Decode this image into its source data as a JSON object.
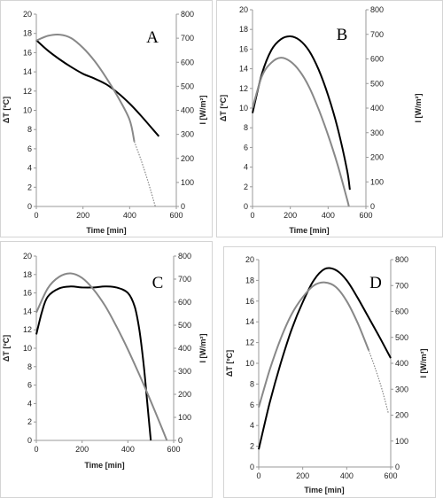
{
  "chart_data": [
    {
      "type": "line",
      "panel_label": "A",
      "xlabel": "Time [min]",
      "ylabel_left": "ΔT [ºC]",
      "ylabel_right": "I [W/m²]",
      "xlim": [
        0,
        600
      ],
      "ylim_left": [
        0,
        20
      ],
      "ylim_right": [
        0,
        800
      ],
      "x_ticks": [
        "0",
        "200",
        "400",
        "600"
      ],
      "y_ticks_left": [
        "0",
        "2",
        "4",
        "6",
        "8",
        "10",
        "12",
        "14",
        "16",
        "18",
        "20"
      ],
      "y_ticks_right": [
        "0",
        "100",
        "200",
        "300",
        "400",
        "500",
        "600",
        "700",
        "800"
      ],
      "series": [
        {
          "axis": "left",
          "color": "#000000",
          "x": [
            0,
            50,
            100,
            150,
            200,
            250,
            300,
            350,
            400,
            450,
            500,
            525
          ],
          "y": [
            17.3,
            16.2,
            15.3,
            14.5,
            13.8,
            13.3,
            12.7,
            11.8,
            10.7,
            9.4,
            8.0,
            7.3
          ]
        },
        {
          "axis": "right",
          "color": "#888888",
          "x": [
            0,
            50,
            100,
            150,
            200,
            250,
            300,
            350,
            400,
            420
          ],
          "y": [
            690,
            710,
            715,
            700,
            660,
            605,
            535,
            455,
            360,
            270
          ]
        },
        {
          "axis": "right",
          "color": "#888888",
          "dashed": true,
          "x": [
            420,
            450,
            480,
            510
          ],
          "y": [
            270,
            190,
            100,
            0
          ]
        }
      ]
    },
    {
      "type": "line",
      "panel_label": "B",
      "xlabel": "Time [min]",
      "ylabel_left": "ΔT [ºC]",
      "ylabel_right": "I [W/m²]",
      "xlim": [
        0,
        600
      ],
      "ylim_left": [
        0,
        20
      ],
      "ylim_right": [
        0,
        800
      ],
      "x_ticks": [
        "0",
        "200",
        "400",
        "600"
      ],
      "y_ticks_left": [
        "0",
        "2",
        "4",
        "6",
        "8",
        "10",
        "12",
        "14",
        "16",
        "18",
        "20"
      ],
      "y_ticks_right": [
        "0",
        "100",
        "200",
        "300",
        "400",
        "500",
        "600",
        "700",
        "800"
      ],
      "series": [
        {
          "axis": "left",
          "color": "#000000",
          "x": [
            0,
            50,
            100,
            150,
            200,
            250,
            300,
            350,
            400,
            450,
            500,
            515
          ],
          "y": [
            9.5,
            13.5,
            15.9,
            17.0,
            17.3,
            16.9,
            15.8,
            13.9,
            11.3,
            8.0,
            3.7,
            1.7
          ]
        },
        {
          "axis": "right",
          "color": "#888888",
          "x": [
            0,
            50,
            100,
            150,
            200,
            250,
            300,
            350,
            400,
            450,
            500,
            510
          ],
          "y": [
            400,
            530,
            585,
            605,
            590,
            550,
            485,
            395,
            290,
            170,
            30,
            0
          ]
        }
      ]
    },
    {
      "type": "line",
      "panel_label": "C",
      "xlabel": "Time [min]",
      "ylabel_left": "ΔT [ºC]",
      "ylabel_right": "I [W/m²]",
      "xlim": [
        0,
        600
      ],
      "ylim_left": [
        0,
        20
      ],
      "ylim_right": [
        0,
        800
      ],
      "x_ticks": [
        "0",
        "200",
        "400",
        "600"
      ],
      "y_ticks_left": [
        "0",
        "2",
        "4",
        "6",
        "8",
        "10",
        "12",
        "14",
        "16",
        "18",
        "20"
      ],
      "y_ticks_right": [
        "0",
        "100",
        "200",
        "300",
        "400",
        "500",
        "600",
        "700",
        "800"
      ],
      "series": [
        {
          "axis": "left",
          "color": "#000000",
          "x": [
            0,
            25,
            50,
            100,
            150,
            200,
            250,
            300,
            350,
            400,
            430,
            450,
            470,
            485,
            500
          ],
          "y": [
            11.5,
            14.0,
            15.6,
            16.5,
            16.7,
            16.6,
            16.6,
            16.7,
            16.6,
            16.0,
            14.5,
            12.0,
            8.0,
            4.0,
            0
          ]
        },
        {
          "axis": "right",
          "color": "#888888",
          "x": [
            0,
            50,
            100,
            150,
            200,
            250,
            300,
            350,
            400,
            450,
            500,
            550,
            570
          ],
          "y": [
            555,
            660,
            710,
            725,
            705,
            655,
            585,
            495,
            395,
            285,
            170,
            50,
            0
          ]
        }
      ]
    },
    {
      "type": "line",
      "panel_label": "D",
      "xlabel": "Time [min]",
      "ylabel_left": "ΔT [ºC]",
      "ylabel_right": "I [W/m²]",
      "xlim": [
        0,
        600
      ],
      "ylim_left": [
        0,
        20
      ],
      "ylim_right": [
        0,
        800
      ],
      "x_ticks": [
        "0",
        "200",
        "400",
        "600"
      ],
      "y_ticks_left": [
        "0",
        "2",
        "4",
        "6",
        "8",
        "10",
        "12",
        "14",
        "16",
        "18",
        "20"
      ],
      "y_ticks_right": [
        "0",
        "100",
        "200",
        "300",
        "400",
        "500",
        "600",
        "700",
        "800"
      ],
      "series": [
        {
          "axis": "left",
          "color": "#000000",
          "x": [
            0,
            50,
            100,
            150,
            200,
            250,
            300,
            350,
            400,
            450,
            500,
            550,
            600
          ],
          "y": [
            1.7,
            6.2,
            10.0,
            13.3,
            15.9,
            18.0,
            19.1,
            19.0,
            18.0,
            16.3,
            14.4,
            12.5,
            10.5
          ]
        },
        {
          "axis": "right",
          "color": "#888888",
          "x": [
            0,
            50,
            100,
            150,
            200,
            250,
            300,
            350,
            400,
            450,
            500
          ],
          "y": [
            230,
            375,
            495,
            590,
            655,
            700,
            712,
            695,
            640,
            555,
            450
          ]
        },
        {
          "axis": "right",
          "color": "#888888",
          "dashed": true,
          "x": [
            500,
            530,
            560,
            590
          ],
          "y": [
            450,
            380,
            300,
            205
          ]
        }
      ]
    }
  ]
}
